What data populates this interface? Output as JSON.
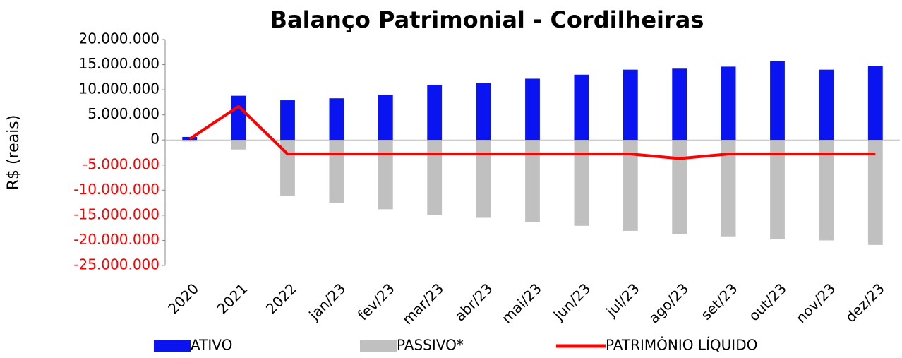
{
  "chart_data": {
    "type": "bar_line",
    "title": "Balanço Patrimonial - Cordilheiras",
    "y_label": "R$ (reais)",
    "categories": [
      "2020",
      "2021",
      "2022",
      "jan/23",
      "fev/23",
      "mar/23",
      "abr/23",
      "mai/23",
      "jun/23",
      "jul/23",
      "ago/23",
      "set/23",
      "out/23",
      "nov/23",
      "dez/23"
    ],
    "series": [
      {
        "name": "ATIVO",
        "kind": "bar",
        "color": "#0a14f0",
        "values": [
          600000,
          8800000,
          7900000,
          8300000,
          9000000,
          11000000,
          11400000,
          12200000,
          13000000,
          14000000,
          14200000,
          14600000,
          15700000,
          14000000,
          14700000
        ]
      },
      {
        "name": "PASSIVO*",
        "kind": "bar",
        "color": "#c0c0c0",
        "values": [
          -300000,
          -1900000,
          -11100000,
          -12600000,
          -13800000,
          -14900000,
          -15500000,
          -16300000,
          -17100000,
          -18100000,
          -18700000,
          -19200000,
          -19800000,
          -20000000,
          -20900000
        ]
      },
      {
        "name": "PATRIMÔNIO LÍQUIDO",
        "kind": "line",
        "color": "#ff0000",
        "values": [
          200000,
          6700000,
          -2800000,
          -2800000,
          -2800000,
          -2800000,
          -2800000,
          -2800000,
          -2800000,
          -2800000,
          -3700000,
          -2800000,
          -2800000,
          -2800000,
          -2800000
        ]
      }
    ],
    "ylim": [
      -25000000,
      20000000
    ],
    "yticks": [
      {
        "value": 20000000,
        "label": "20.000.000"
      },
      {
        "value": 15000000,
        "label": "15.000.000"
      },
      {
        "value": 10000000,
        "label": "10.000.000"
      },
      {
        "value": 5000000,
        "label": "5.000.000"
      },
      0,
      {
        "value": -5000000,
        "label": "-5.000.000"
      },
      {
        "value": -10000000,
        "label": "-10.000.000"
      },
      {
        "value": -15000000,
        "label": "-15.000.000"
      },
      {
        "value": -20000000,
        "label": "-20.000.000"
      },
      {
        "value": -25000000,
        "label": "-25.000.000"
      }
    ],
    "negative_tick_color": "#ff0000",
    "grid": false,
    "legend": "bottom"
  }
}
